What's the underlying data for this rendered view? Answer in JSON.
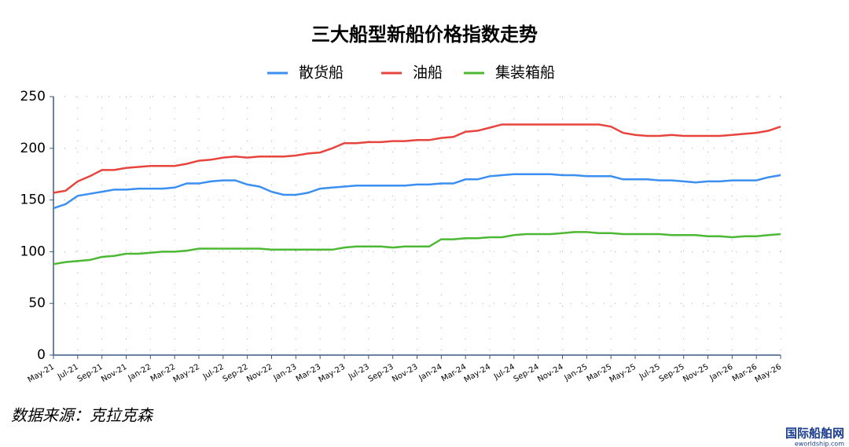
{
  "chart_data": {
    "type": "line",
    "title": "三大船型新船价格指数走势",
    "categories": [
      "May-21",
      null,
      "Jul-21",
      null,
      "Sep-21",
      null,
      "Nov-21",
      null,
      "Jan-22",
      null,
      "Mar-22",
      null,
      "May-22",
      null,
      "Jul-22",
      null,
      "Sep-22",
      null,
      "Nov-22",
      null,
      "Jan-23",
      null,
      "Mar-23",
      null,
      "May-23",
      null,
      "Jul-23",
      null,
      "Sep-23",
      null,
      "Nov-23",
      null,
      "Jan-24",
      null,
      "Mar-24",
      null,
      "May-24",
      null,
      "Jul-24",
      null,
      "Sep-24",
      null,
      "Nov-24",
      null,
      "Jan-25",
      null,
      "Mar-25",
      null,
      "May-25",
      null,
      "Jul-25",
      null,
      "Sep-25",
      null,
      "Nov-25",
      null,
      "Jan-26",
      null,
      "Mar-26",
      null,
      "May-26"
    ],
    "series": [
      {
        "name": "散货船",
        "color": "#3b8ff0",
        "values": [
          142,
          146,
          154,
          156,
          158,
          160,
          160,
          161,
          161,
          161,
          162,
          166,
          166,
          168,
          169,
          169,
          165,
          163,
          158,
          155,
          155,
          157,
          161,
          162,
          163,
          164,
          164,
          164,
          164,
          164,
          165,
          165,
          166,
          166,
          170,
          170,
          173,
          174,
          175,
          175,
          175,
          175,
          174,
          174,
          173,
          173,
          173,
          170,
          170,
          170,
          169,
          169,
          168,
          167,
          168,
          168,
          169,
          169,
          169,
          172,
          174
        ]
      },
      {
        "name": "油船",
        "color": "#e8443e",
        "values": [
          157,
          159,
          168,
          173,
          179,
          179,
          181,
          182,
          183,
          183,
          183,
          185,
          188,
          189,
          191,
          192,
          191,
          192,
          192,
          192,
          193,
          195,
          196,
          200,
          205,
          205,
          206,
          206,
          207,
          207,
          208,
          208,
          210,
          211,
          216,
          217,
          220,
          223,
          223,
          223,
          223,
          223,
          223,
          223,
          223,
          223,
          221,
          215,
          213,
          212,
          212,
          213,
          212,
          212,
          212,
          212,
          213,
          214,
          215,
          217,
          221
        ]
      },
      {
        "name": "集装箱船",
        "color": "#4cb834",
        "values": [
          88,
          90,
          91,
          92,
          95,
          96,
          98,
          98,
          99,
          100,
          100,
          101,
          103,
          103,
          103,
          103,
          103,
          103,
          102,
          102,
          102,
          102,
          102,
          102,
          104,
          105,
          105,
          105,
          104,
          105,
          105,
          105,
          112,
          112,
          113,
          113,
          114,
          114,
          116,
          117,
          117,
          117,
          118,
          119,
          119,
          118,
          118,
          117,
          117,
          117,
          117,
          116,
          116,
          116,
          115,
          115,
          114,
          115,
          115,
          116,
          117
        ]
      }
    ],
    "ylim": [
      0,
      250
    ],
    "yticks": [
      0,
      50,
      100,
      150,
      200,
      250
    ],
    "grid": true,
    "source": "数据来源：克拉克森",
    "watermark": "国际船舶网",
    "watermark_url": "eworldship.com"
  }
}
